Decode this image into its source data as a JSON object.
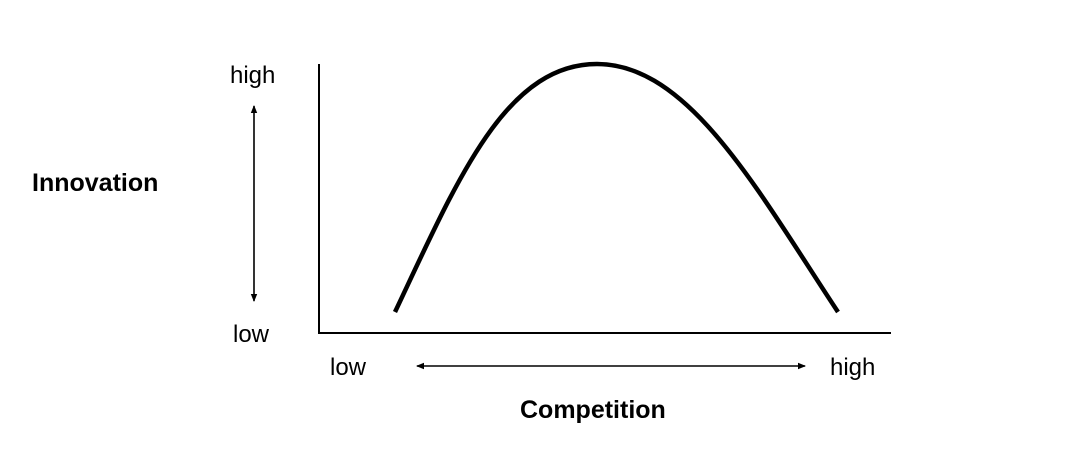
{
  "y_axis": {
    "title": "Innovation",
    "top_label": "high",
    "bottom_label": "low"
  },
  "x_axis": {
    "title": "Competition",
    "left_label": "low",
    "right_label": "high"
  },
  "curve": {
    "shape": "inverted-U",
    "color": "#000000"
  },
  "colors": {
    "ink": "#000000",
    "background": "#ffffff"
  }
}
